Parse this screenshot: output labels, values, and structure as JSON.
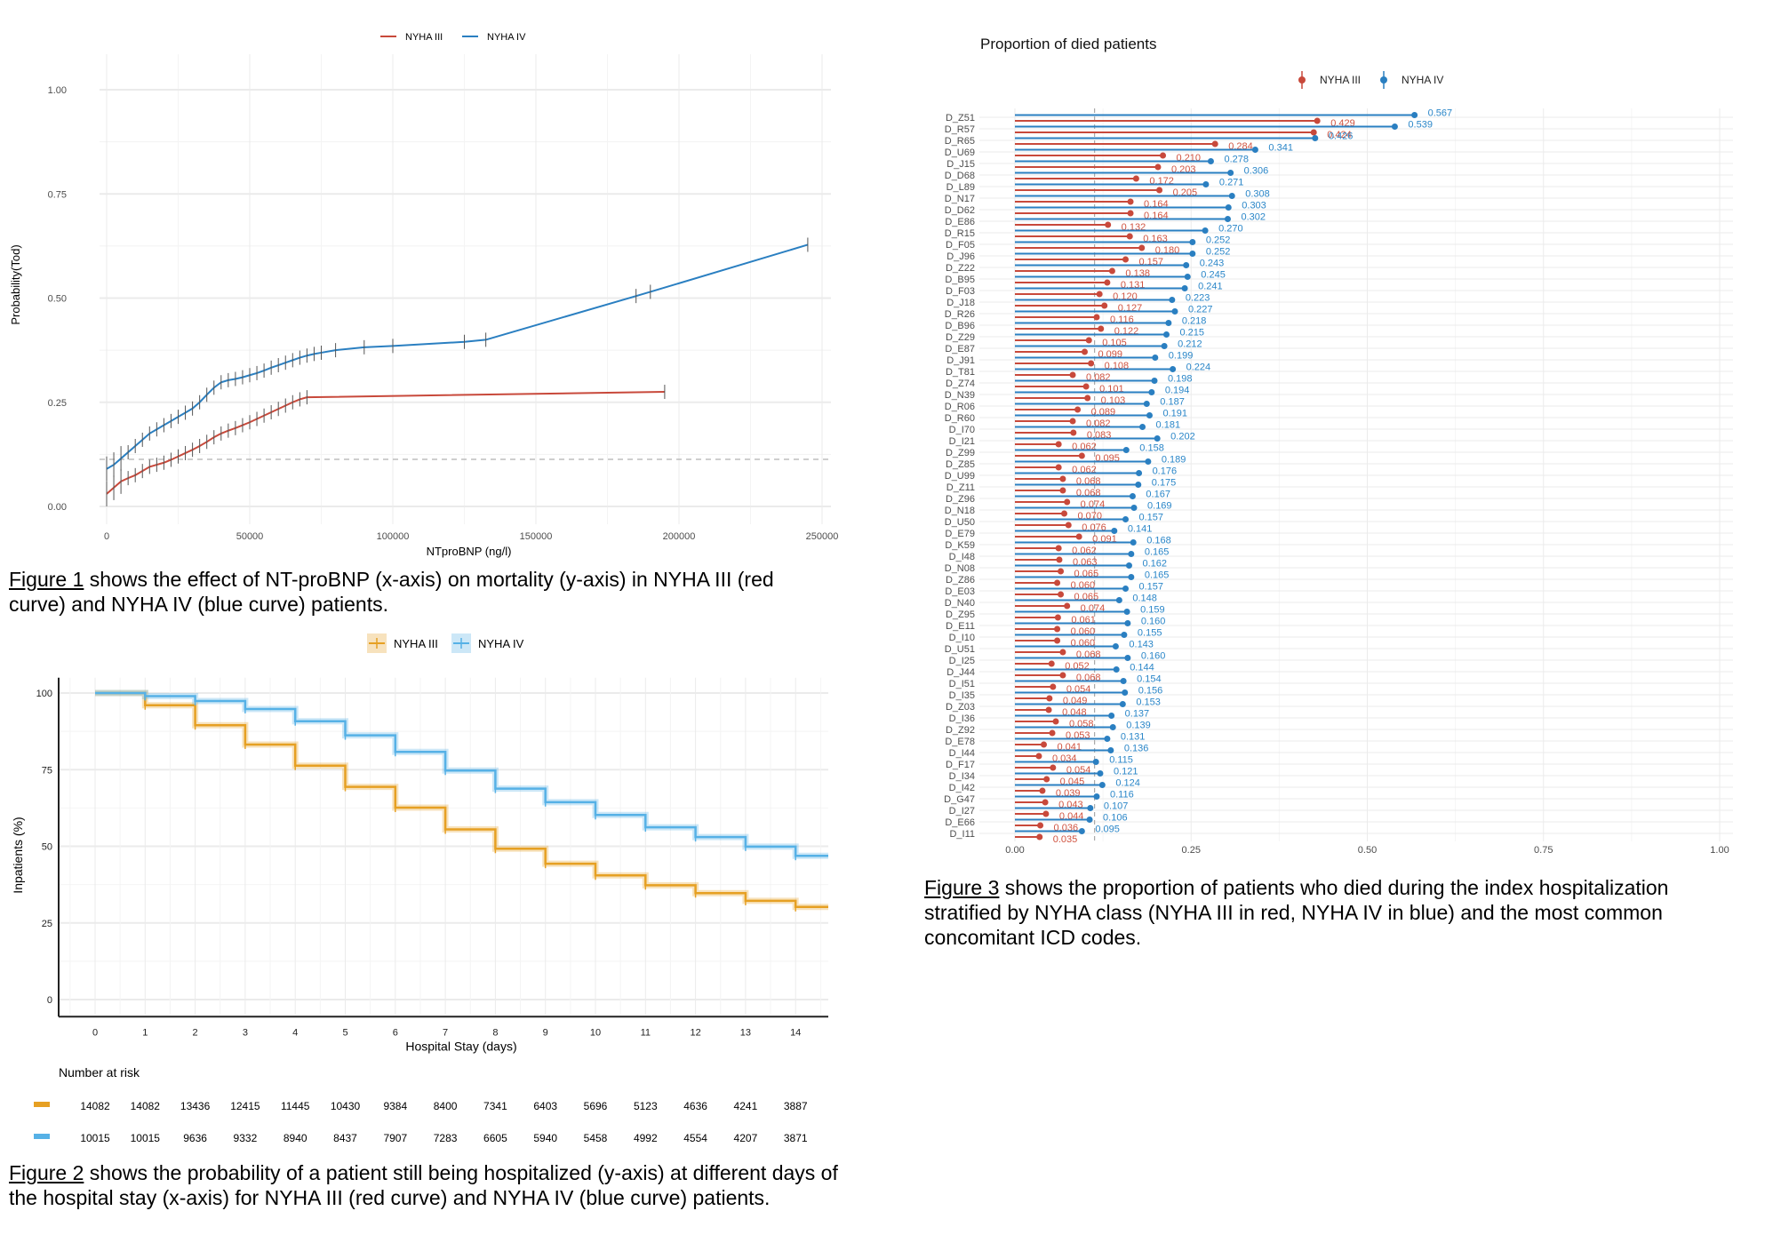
{
  "chart_data": [
    {
      "id": "figure1",
      "type": "line",
      "title": "",
      "xlabel": "NTproBNP (ng/l)",
      "ylabel": "Probability(Tod)",
      "xlim": [
        0,
        250000
      ],
      "ylim": [
        0,
        1
      ],
      "x_ticks": [
        0,
        50000,
        100000,
        150000,
        200000,
        250000
      ],
      "x_tick_labels": [
        "0",
        "50000",
        "100000",
        "150000",
        "200000",
        "250000"
      ],
      "y_ticks": [
        0,
        0.25,
        0.5,
        0.75,
        1.0
      ],
      "y_tick_labels": [
        "0.00",
        "0.25",
        "0.50",
        "0.75",
        "1.00"
      ],
      "grid": true,
      "legend_position": "top",
      "reference_line": {
        "orientation": "horizontal",
        "y": 0.113,
        "style": "dashed"
      },
      "series": [
        {
          "name": "NYHA III",
          "color": "#c8493b",
          "x": [
            0,
            2500,
            5000,
            7500,
            10000,
            12500,
            15000,
            17500,
            20000,
            22500,
            25000,
            27500,
            30000,
            32500,
            35000,
            37500,
            40000,
            42500,
            45000,
            47500,
            50000,
            52500,
            55000,
            57500,
            60000,
            62500,
            65000,
            67500,
            70000,
            195000
          ],
          "y": [
            0.03,
            0.045,
            0.06,
            0.068,
            0.075,
            0.085,
            0.095,
            0.1,
            0.105,
            0.112,
            0.12,
            0.128,
            0.136,
            0.145,
            0.155,
            0.166,
            0.175,
            0.182,
            0.188,
            0.195,
            0.202,
            0.21,
            0.218,
            0.226,
            0.234,
            0.242,
            0.25,
            0.257,
            0.262,
            0.275
          ]
        },
        {
          "name": "NYHA IV",
          "color": "#2a7fc1",
          "x": [
            0,
            2500,
            5000,
            7500,
            10000,
            12500,
            15000,
            17500,
            20000,
            22500,
            25000,
            27500,
            30000,
            32500,
            35000,
            37500,
            40000,
            42500,
            45000,
            47500,
            50000,
            52500,
            55000,
            57500,
            60000,
            62500,
            65000,
            67500,
            70000,
            72500,
            75000,
            80000,
            90000,
            100000,
            125000,
            132500,
            185000,
            190000,
            245000
          ],
          "y": [
            0.09,
            0.1,
            0.115,
            0.13,
            0.145,
            0.16,
            0.175,
            0.185,
            0.195,
            0.205,
            0.215,
            0.225,
            0.235,
            0.25,
            0.268,
            0.285,
            0.298,
            0.303,
            0.306,
            0.31,
            0.315,
            0.32,
            0.326,
            0.333,
            0.339,
            0.345,
            0.351,
            0.357,
            0.362,
            0.366,
            0.369,
            0.375,
            0.382,
            0.385,
            0.395,
            0.4,
            0.505,
            0.515,
            0.628
          ]
        }
      ]
    },
    {
      "id": "figure2",
      "type": "line",
      "subtype": "step",
      "title": "",
      "xlabel": "Hospital Stay (days)",
      "ylabel": "Inpatients (%)",
      "xlim": [
        -0.5,
        14.7
      ],
      "ylim": [
        0,
        100
      ],
      "x_ticks": [
        0,
        1,
        2,
        3,
        4,
        5,
        6,
        7,
        8,
        9,
        10,
        11,
        12,
        13,
        14
      ],
      "x_tick_labels": [
        "0",
        "1",
        "2",
        "3",
        "4",
        "5",
        "6",
        "7",
        "8",
        "9",
        "10",
        "11",
        "12",
        "13",
        "14"
      ],
      "y_ticks": [
        0,
        25,
        50,
        75,
        100
      ],
      "y_tick_labels": [
        "0",
        "25",
        "50",
        "75",
        "100"
      ],
      "grid": true,
      "legend_position": "top",
      "series": [
        {
          "name": "NYHA III",
          "color": "#e6a023",
          "x": [
            0,
            1,
            2,
            3,
            4,
            5,
            6,
            7,
            8,
            9,
            10,
            11,
            12,
            13,
            14
          ],
          "y": [
            100,
            96.0,
            89.5,
            83.2,
            76.3,
            69.4,
            62.6,
            55.5,
            49.2,
            44.3,
            40.5,
            37.3,
            34.7,
            32.2,
            30.2
          ]
        },
        {
          "name": "NYHA IV",
          "color": "#56b1e6",
          "x": [
            0,
            1,
            2,
            3,
            4,
            5,
            6,
            7,
            8,
            9,
            10,
            11,
            12,
            13,
            14
          ],
          "y": [
            100,
            99.0,
            97.4,
            94.8,
            90.8,
            86.2,
            80.8,
            74.7,
            68.8,
            64.4,
            60.2,
            56.2,
            53.0,
            49.9,
            46.9
          ]
        }
      ],
      "risk_table": {
        "title": "Number at risk",
        "rows": [
          {
            "name": "NYHA III",
            "color": "#e6a023",
            "values": [
              "14082",
              "14082",
              "13436",
              "12415",
              "11445",
              "10430",
              "9384",
              "8400",
              "7341",
              "6403",
              "5696",
              "5123",
              "4636",
              "4241",
              "3887"
            ]
          },
          {
            "name": "NYHA IV",
            "color": "#56b1e6",
            "values": [
              "10015",
              "10015",
              "9636",
              "9332",
              "8940",
              "8437",
              "7907",
              "7283",
              "6605",
              "5940",
              "5458",
              "4992",
              "4554",
              "4207",
              "3871"
            ]
          }
        ]
      }
    },
    {
      "id": "figure3",
      "type": "bar",
      "subtype": "lollipop",
      "title": "Proportion of died patients",
      "xlabel": "",
      "ylabel": "",
      "xlim": [
        0,
        1
      ],
      "x_ticks": [
        0,
        0.25,
        0.5,
        0.75,
        1.0
      ],
      "x_tick_labels": [
        "0.00",
        "0.25",
        "0.50",
        "0.75",
        "1.00"
      ],
      "grid": true,
      "legend_position": "top-right",
      "reference_line": {
        "orientation": "vertical",
        "x": 0.113,
        "style": "dashed"
      },
      "categories": [
        "D_Z51",
        "D_R57",
        "D_R65",
        "D_U69",
        "D_J15",
        "D_D68",
        "D_L89",
        "D_N17",
        "D_D62",
        "D_E86",
        "D_R15",
        "D_F05",
        "D_J96",
        "D_Z22",
        "D_B95",
        "D_F03",
        "D_J18",
        "D_R26",
        "D_B96",
        "D_Z29",
        "D_E87",
        "D_J91",
        "D_T81",
        "D_Z74",
        "D_N39",
        "D_R06",
        "D_R60",
        "D_I70",
        "D_I21",
        "D_Z99",
        "D_Z85",
        "D_U99",
        "D_Z11",
        "D_Z96",
        "D_N18",
        "D_U50",
        "D_E79",
        "D_K59",
        "D_I48",
        "D_N08",
        "D_Z86",
        "D_E03",
        "D_N40",
        "D_Z95",
        "D_E11",
        "D_I10",
        "D_U51",
        "D_I25",
        "D_J44",
        "D_I51",
        "D_I35",
        "D_Z03",
        "D_I36",
        "D_Z92",
        "D_E78",
        "D_I44",
        "D_F17",
        "D_I34",
        "D_I42",
        "D_G47",
        "D_I27",
        "D_E66",
        "D_I11"
      ],
      "series": [
        {
          "name": "NYHA III",
          "color": "#c8493b",
          "values": [
            0.429,
            0.424,
            0.284,
            0.21,
            0.203,
            0.172,
            0.205,
            0.164,
            0.164,
            0.132,
            0.163,
            0.18,
            0.157,
            0.138,
            0.131,
            0.12,
            0.127,
            0.116,
            0.122,
            0.105,
            0.099,
            0.108,
            0.082,
            0.101,
            0.103,
            0.089,
            0.082,
            0.083,
            0.062,
            0.095,
            0.062,
            0.068,
            0.068,
            0.074,
            0.07,
            0.076,
            0.091,
            0.062,
            0.063,
            0.065,
            0.06,
            0.065,
            0.074,
            0.061,
            0.06,
            0.06,
            0.068,
            0.052,
            0.068,
            0.054,
            0.049,
            0.048,
            0.058,
            0.053,
            0.041,
            0.034,
            0.054,
            0.045,
            0.039,
            0.043,
            0.044,
            0.036,
            0.035
          ]
        },
        {
          "name": "NYHA IV",
          "color": "#2a7fc1",
          "values": [
            0.567,
            0.539,
            0.426,
            0.341,
            0.278,
            0.306,
            0.271,
            0.308,
            0.303,
            0.302,
            0.27,
            0.252,
            0.252,
            0.243,
            0.245,
            0.241,
            0.223,
            0.227,
            0.218,
            0.215,
            0.212,
            0.199,
            0.224,
            0.198,
            0.194,
            0.187,
            0.191,
            0.181,
            0.202,
            0.158,
            0.189,
            0.176,
            0.175,
            0.167,
            0.169,
            0.157,
            0.141,
            0.168,
            0.165,
            0.162,
            0.165,
            0.157,
            0.148,
            0.159,
            0.16,
            0.155,
            0.143,
            0.16,
            0.144,
            0.154,
            0.156,
            0.153,
            0.137,
            0.139,
            0.131,
            0.136,
            0.115,
            0.121,
            0.124,
            0.116,
            0.107,
            0.106,
            0.095
          ]
        }
      ]
    }
  ],
  "captions": {
    "figure1": {
      "ref": "Figure 1",
      "text": " shows the effect of NT-proBNP (x-axis) on mortality (y-axis) in NYHA III (red curve) and NYHA IV (blue curve) patients."
    },
    "figure2": {
      "ref": "Figure 2",
      "text": " shows the probability of a patient still being hospitalized (y-axis) at different days of the hospital stay (x-axis) for NYHA III (red curve) and NYHA IV (blue curve) patients."
    },
    "figure3": {
      "ref": "Figure 3",
      "text": " shows the proportion of patients who died during the index hospitalization stratified by NYHA class (NYHA III in red, NYHA IV in blue) and the most common concomitant ICD codes."
    }
  }
}
